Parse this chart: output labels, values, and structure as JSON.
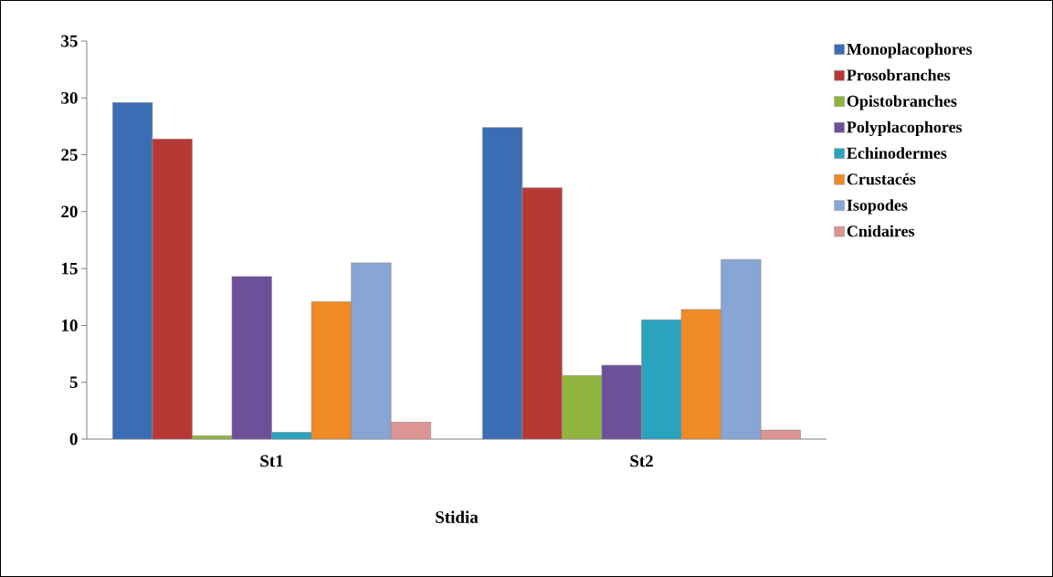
{
  "chart_data": {
    "type": "bar",
    "xlabel": "Stidia",
    "categories": [
      "St1",
      "St2"
    ],
    "ylim": [
      0,
      35
    ],
    "yticks": [
      0,
      5,
      10,
      15,
      20,
      25,
      30,
      35
    ],
    "legend": "right",
    "series": [
      {
        "name": "Monoplacophores",
        "color": "#3a6db3",
        "values": [
          29.6,
          27.4
        ]
      },
      {
        "name": "Prosobranches",
        "color": "#b83835",
        "values": [
          26.4,
          22.1
        ]
      },
      {
        "name": "Opistobranches",
        "color": "#8fb53e",
        "values": [
          0.3,
          5.6
        ]
      },
      {
        "name": "Polyplacophores",
        "color": "#6e4f99",
        "values": [
          14.3,
          6.5
        ]
      },
      {
        "name": "Echinodermes",
        "color": "#2aa3be",
        "values": [
          0.6,
          10.5
        ]
      },
      {
        "name": "Crustacés",
        "color": "#f08a24",
        "values": [
          12.1,
          11.4
        ]
      },
      {
        "name": "Isopodes",
        "color": "#87a5d5",
        "values": [
          15.5,
          15.8
        ]
      },
      {
        "name": "Cnidaires",
        "color": "#dd9593",
        "values": [
          1.5,
          0.8
        ]
      }
    ]
  }
}
